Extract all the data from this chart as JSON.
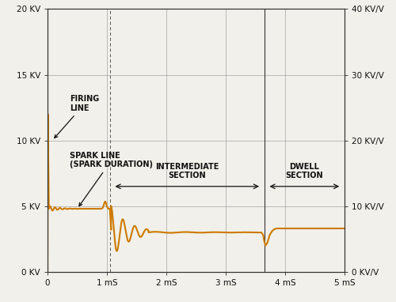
{
  "xlim": [
    0,
    5
  ],
  "ylim": [
    0,
    20
  ],
  "xticks": [
    0,
    1,
    2,
    3,
    4,
    5
  ],
  "xtick_labels": [
    "0",
    "1 mS",
    "2 mS",
    "3 mS",
    "4 mS",
    "5 mS"
  ],
  "yticks_left": [
    0,
    5,
    10,
    15,
    20
  ],
  "ytick_labels_left": [
    "0 KV",
    "5 KV",
    "10 KV",
    "15 KV",
    "20 KV"
  ],
  "yticks_right": [
    0,
    5,
    10,
    15,
    20
  ],
  "ytick_labels_right": [
    "0 KV/V",
    "10 KV/V",
    "20 KV/V",
    "30 KV/V",
    "40 KV/V"
  ],
  "line_color": "#CC7A00",
  "line_width": 1.5,
  "bg_color": "#F2F0EA",
  "grid_color": "#888888",
  "text_color": "#111111",
  "annotation_color": "#111111",
  "intermediate_start_x": 1.05,
  "dwell_start_x": 3.65,
  "figsize": [
    5.0,
    3.82
  ],
  "dpi": 100
}
